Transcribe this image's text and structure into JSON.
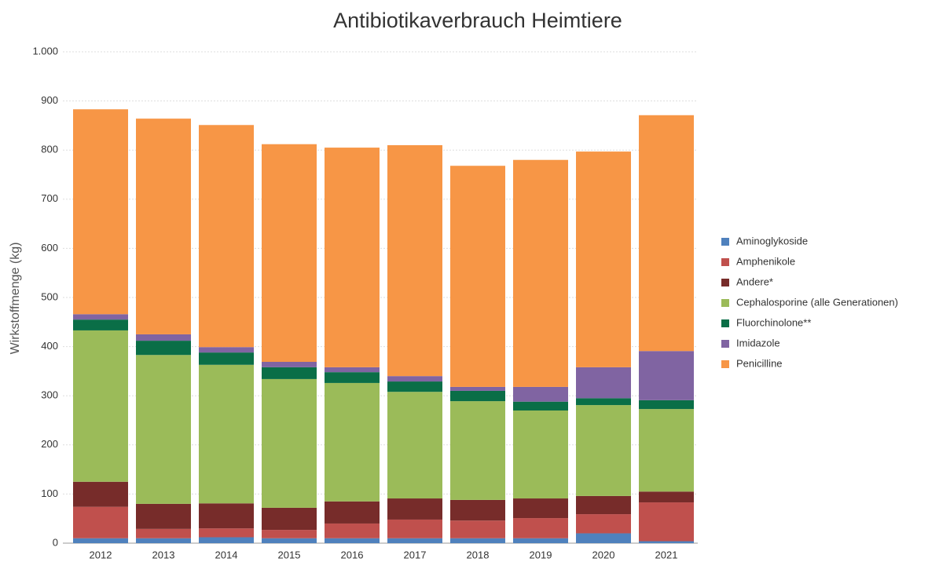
{
  "chart_data": {
    "type": "stacked_bar",
    "title": "Antibiotikaverbrauch Heimtiere",
    "y_label": "Wirkstoffmenge (kg)",
    "categories": [
      "2012",
      "2013",
      "2014",
      "2015",
      "2016",
      "2017",
      "2018",
      "2019",
      "2020",
      "2021"
    ],
    "series": [
      {
        "name": "Aminoglykoside",
        "color": "#4f81bd",
        "values": [
          10,
          10,
          12,
          10,
          10,
          10,
          10,
          10,
          20,
          4
        ]
      },
      {
        "name": "Amphenikole",
        "color": "#c0504d",
        "values": [
          64,
          19,
          18,
          17,
          30,
          38,
          36,
          41,
          39,
          79
        ]
      },
      {
        "name": "Andere*",
        "color": "#772c2a",
        "values": [
          51,
          51,
          51,
          45,
          45,
          43,
          42,
          40,
          37,
          22
        ]
      },
      {
        "name": "Cephalosporine (alle Generationen)",
        "color": "#9bbb59",
        "values": [
          308,
          303,
          282,
          262,
          241,
          217,
          201,
          179,
          185,
          168
        ]
      },
      {
        "name": "Fluorchinolone**",
        "color": "#0a6e47",
        "values": [
          22,
          29,
          25,
          24,
          22,
          21,
          21,
          18,
          14,
          18
        ]
      },
      {
        "name": "Imidazole",
        "color": "#8064a2",
        "values": [
          11,
          13,
          11,
          11,
          10,
          11,
          8,
          30,
          63,
          100
        ]
      },
      {
        "name": "Penicilline",
        "color": "#f79646",
        "values": [
          417,
          439,
          452,
          443,
          447,
          470,
          450,
          462,
          439,
          480
        ]
      }
    ],
    "ylim": [
      0,
      1000
    ],
    "yticks": [
      0,
      100,
      200,
      300,
      400,
      500,
      600,
      700,
      800,
      900,
      {
        "value": 1000,
        "label": "1.000"
      }
    ],
    "grid": true,
    "legend": "right"
  }
}
